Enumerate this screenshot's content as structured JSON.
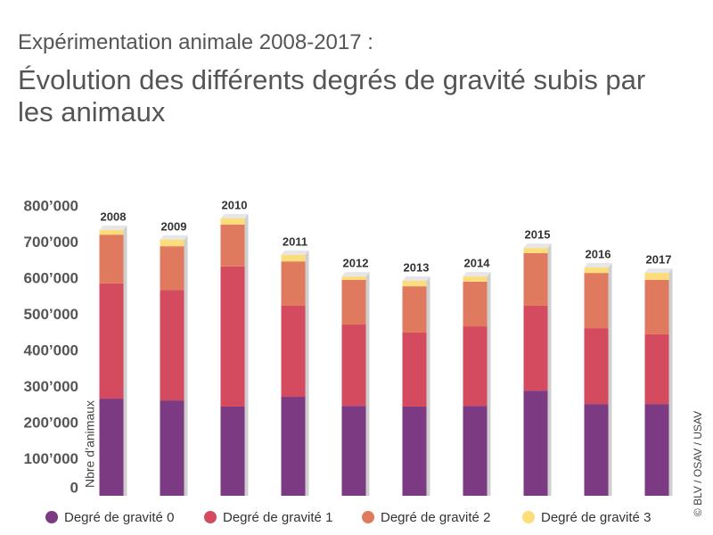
{
  "chart_data": {
    "type": "stacked-bar",
    "subtitle": "Expérimentation animale 2008-2017 :",
    "title": "Évolution des différents degrés de gravité subis par les animaux",
    "y_label": "Nbre d’animaux",
    "source": "© BLV / OSAV / USAV",
    "categories": [
      "2008",
      "2009",
      "2010",
      "2011",
      "2012",
      "2013",
      "2014",
      "2015",
      "2016",
      "2017"
    ],
    "series": [
      {
        "name": "Degré de gravité 0",
        "color": "#7b3a82",
        "values": [
          269000,
          264000,
          247000,
          274000,
          249000,
          247000,
          249000,
          291000,
          254000,
          254000
        ]
      },
      {
        "name": "Degré de gravité 1",
        "color": "#d44a5e",
        "values": [
          319000,
          306000,
          388000,
          252000,
          225000,
          205000,
          220000,
          235000,
          210000,
          193000
        ]
      },
      {
        "name": "Degré de gravité 2",
        "color": "#e07a5f",
        "values": [
          135000,
          121000,
          116000,
          123000,
          124000,
          128000,
          124000,
          146000,
          153000,
          151000
        ]
      },
      {
        "name": "Degré de gravité 3",
        "color": "#fddc7a",
        "values": [
          13000,
          18000,
          17000,
          18000,
          9000,
          15000,
          14000,
          14000,
          15000,
          19000
        ]
      }
    ],
    "ylim": [
      0,
      800000
    ],
    "yticks": [
      0,
      {
        "value": 100000,
        "label": "100’000"
      },
      {
        "value": 200000,
        "label": "200’000"
      },
      {
        "value": 300000,
        "label": "300’000"
      },
      {
        "value": 400000,
        "label": "400’000"
      },
      {
        "value": 500000,
        "label": "500’000"
      },
      {
        "value": 600000,
        "label": "600’000"
      },
      {
        "value": 700000,
        "label": "700’000"
      },
      {
        "value": 800000,
        "label": "800’000"
      }
    ]
  }
}
